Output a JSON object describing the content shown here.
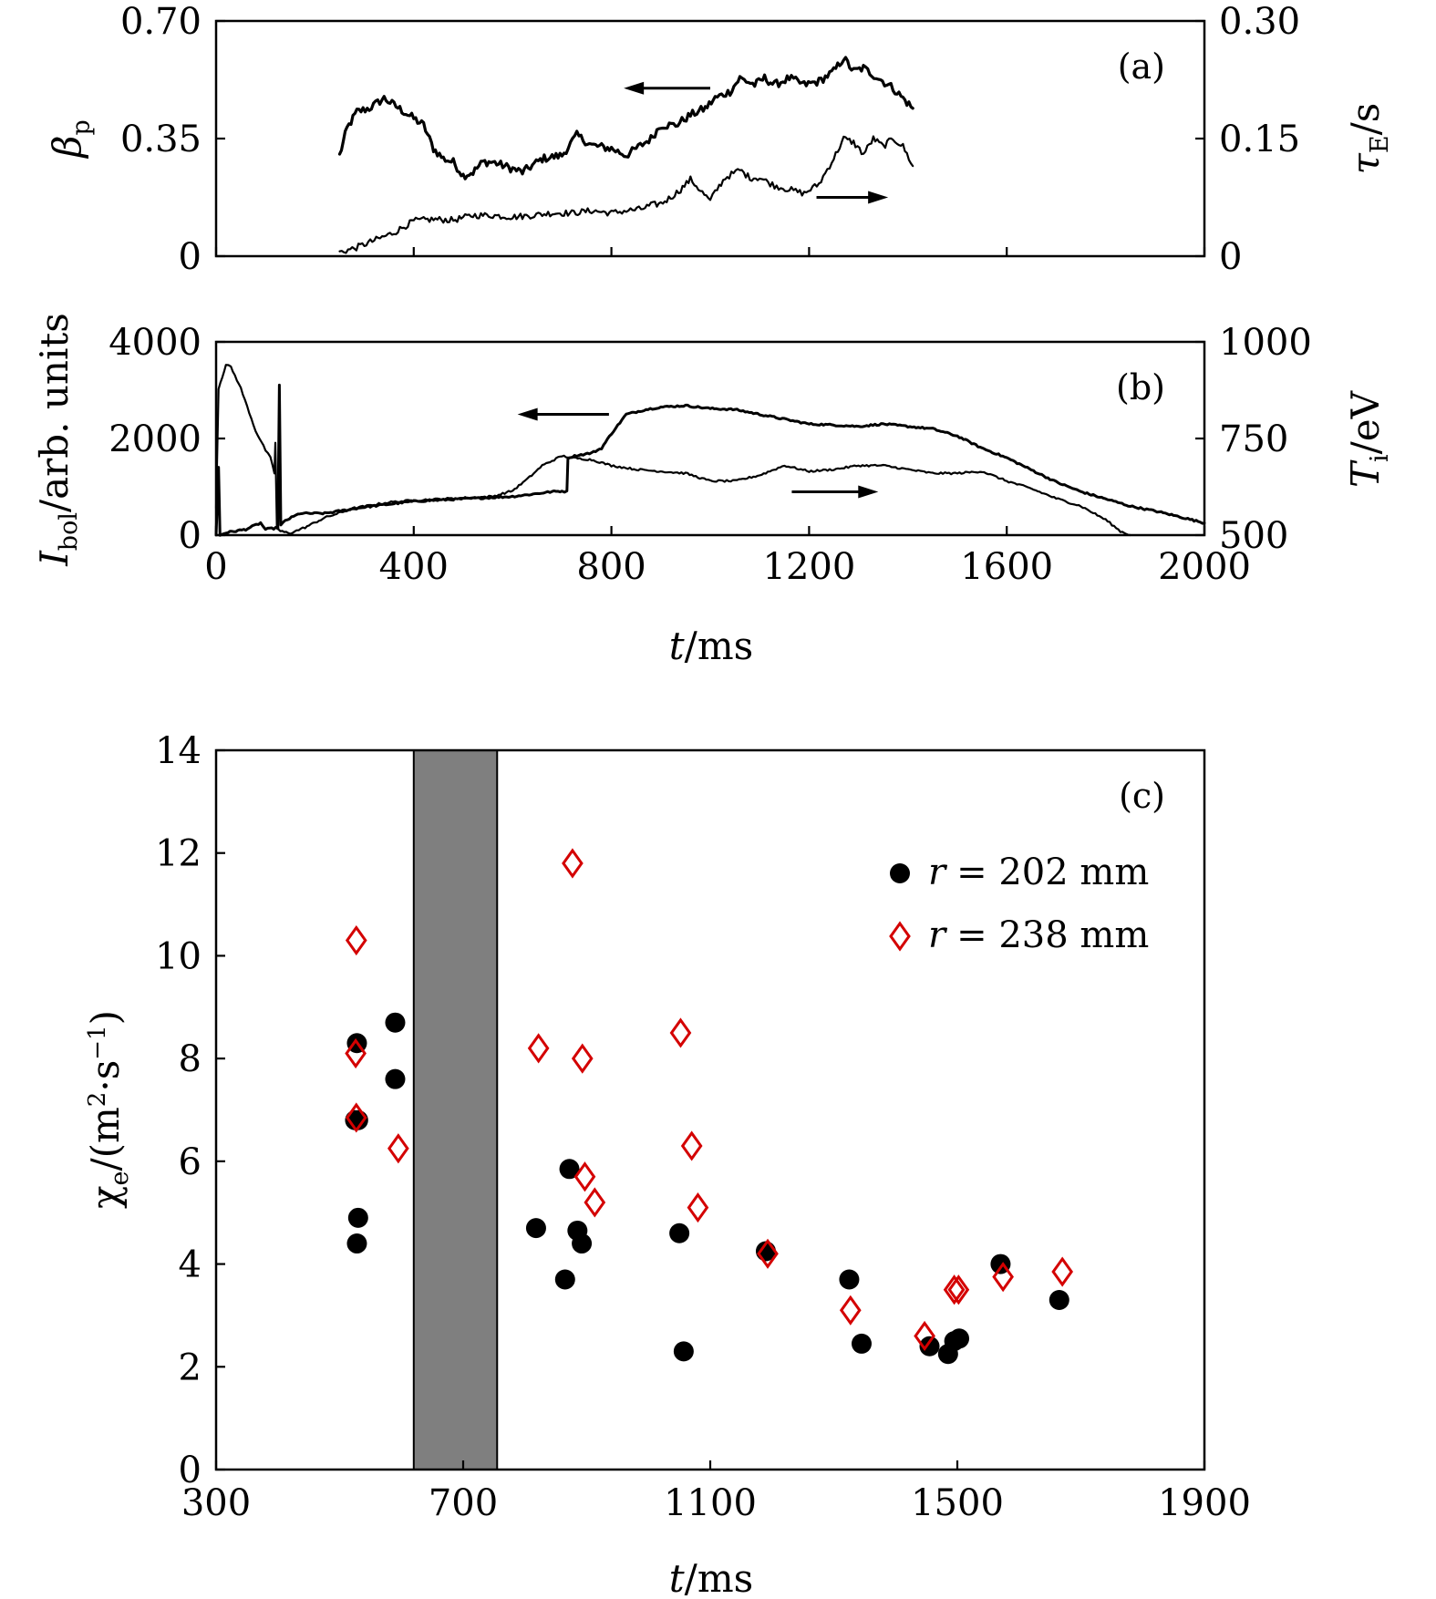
{
  "chart_data": [
    {
      "id": "a",
      "type": "line",
      "panel_label": "(a)",
      "xlim": [
        0,
        2000
      ],
      "xticks": [
        0,
        400,
        800,
        1200,
        1600,
        2000
      ],
      "ylabel_left": {
        "sym": "β",
        "sub": "p"
      },
      "ylabel_right": {
        "sym": "τ",
        "sub": "E",
        "unit": "/s"
      },
      "ylim_left": [
        0,
        0.7
      ],
      "ylim_right": [
        0,
        0.3
      ],
      "yticks_left": [
        {
          "v": 0,
          "label": "0"
        },
        {
          "v": 0.35,
          "label": "0.35"
        },
        {
          "v": 0.7,
          "label": "0.70"
        }
      ],
      "yticks_right": [
        {
          "v": 0,
          "label": "0"
        },
        {
          "v": 0.15,
          "label": "0.15"
        },
        {
          "v": 0.3,
          "label": "0.30"
        }
      ],
      "series": [
        {
          "name": "beta_p",
          "axis": "left",
          "noise": 0.012,
          "stroke": 3.2,
          "points": [
            [
              250,
              0.3
            ],
            [
              265,
              0.38
            ],
            [
              285,
              0.43
            ],
            [
              310,
              0.44
            ],
            [
              340,
              0.47
            ],
            [
              360,
              0.45
            ],
            [
              400,
              0.41
            ],
            [
              420,
              0.39
            ],
            [
              440,
              0.32
            ],
            [
              460,
              0.29
            ],
            [
              480,
              0.28
            ],
            [
              500,
              0.24
            ],
            [
              520,
              0.25
            ],
            [
              540,
              0.28
            ],
            [
              560,
              0.28
            ],
            [
              600,
              0.26
            ],
            [
              620,
              0.25
            ],
            [
              660,
              0.29
            ],
            [
              700,
              0.3
            ],
            [
              730,
              0.36
            ],
            [
              760,
              0.33
            ],
            [
              800,
              0.32
            ],
            [
              830,
              0.3
            ],
            [
              850,
              0.32
            ],
            [
              880,
              0.35
            ],
            [
              900,
              0.39
            ],
            [
              930,
              0.39
            ],
            [
              960,
              0.42
            ],
            [
              990,
              0.44
            ],
            [
              1010,
              0.47
            ],
            [
              1040,
              0.49
            ],
            [
              1060,
              0.53
            ],
            [
              1090,
              0.51
            ],
            [
              1110,
              0.53
            ],
            [
              1130,
              0.51
            ],
            [
              1160,
              0.53
            ],
            [
              1190,
              0.51
            ],
            [
              1220,
              0.52
            ],
            [
              1250,
              0.55
            ],
            [
              1270,
              0.59
            ],
            [
              1290,
              0.55
            ],
            [
              1310,
              0.56
            ],
            [
              1340,
              0.53
            ],
            [
              1370,
              0.5
            ],
            [
              1390,
              0.47
            ],
            [
              1410,
              0.44
            ]
          ]
        },
        {
          "name": "tau_E",
          "axis": "right",
          "noise": 0.004,
          "stroke": 2.2,
          "points": [
            [
              250,
              0.005
            ],
            [
              280,
              0.01
            ],
            [
              320,
              0.02
            ],
            [
              360,
              0.03
            ],
            [
              400,
              0.045
            ],
            [
              440,
              0.047
            ],
            [
              480,
              0.046
            ],
            [
              520,
              0.052
            ],
            [
              560,
              0.052
            ],
            [
              600,
              0.05
            ],
            [
              640,
              0.052
            ],
            [
              680,
              0.055
            ],
            [
              720,
              0.055
            ],
            [
              760,
              0.058
            ],
            [
              800,
              0.055
            ],
            [
              830,
              0.058
            ],
            [
              860,
              0.06
            ],
            [
              880,
              0.065
            ],
            [
              900,
              0.067
            ],
            [
              920,
              0.075
            ],
            [
              940,
              0.085
            ],
            [
              960,
              0.098
            ],
            [
              980,
              0.084
            ],
            [
              1000,
              0.07
            ],
            [
              1010,
              0.082
            ],
            [
              1030,
              0.1
            ],
            [
              1060,
              0.11
            ],
            [
              1080,
              0.1
            ],
            [
              1100,
              0.1
            ],
            [
              1130,
              0.09
            ],
            [
              1160,
              0.085
            ],
            [
              1190,
              0.08
            ],
            [
              1220,
              0.092
            ],
            [
              1250,
              0.125
            ],
            [
              1270,
              0.15
            ],
            [
              1290,
              0.145
            ],
            [
              1310,
              0.13
            ],
            [
              1330,
              0.15
            ],
            [
              1350,
              0.14
            ],
            [
              1370,
              0.15
            ],
            [
              1390,
              0.14
            ],
            [
              1410,
              0.115
            ]
          ]
        }
      ],
      "arrows": [
        {
          "direction": "left",
          "from": [
            1000,
            0.5
          ],
          "to": [
            825,
            0.5
          ],
          "axis": "left"
        },
        {
          "direction": "right",
          "from": [
            1215,
            0.075
          ],
          "to": [
            1360,
            0.075
          ],
          "axis": "right"
        }
      ]
    },
    {
      "id": "b",
      "type": "line",
      "panel_label": "(b)",
      "xlim": [
        0,
        2000
      ],
      "xticks": [
        0,
        400,
        800,
        1200,
        1600,
        2000
      ],
      "xtick_labels": [
        "0",
        "400",
        "800",
        "1200",
        "1600",
        "2000"
      ],
      "xlabel": {
        "sym": "t",
        "unit": "/ms"
      },
      "ylabel_left": {
        "sym": "I",
        "sub": "bol",
        "unit": "/arb. units"
      },
      "ylabel_right": {
        "sym": "T",
        "sub": "i",
        "unit": "/eV"
      },
      "ylim_left": [
        0,
        4000
      ],
      "ylim_right": [
        500,
        1000
      ],
      "yticks_left": [
        {
          "v": 0,
          "label": "0"
        },
        {
          "v": 2000,
          "label": "2000"
        },
        {
          "v": 4000,
          "label": "4000"
        }
      ],
      "yticks_right": [
        {
          "v": 500,
          "label": "500"
        },
        {
          "v": 750,
          "label": "750"
        },
        {
          "v": 1000,
          "label": "1000"
        }
      ],
      "series": [
        {
          "name": "I_bol",
          "axis": "left",
          "noise": 18,
          "stroke": 3.0,
          "points": [
            [
              0,
              0
            ],
            [
              5,
              1400
            ],
            [
              8,
              0
            ],
            [
              20,
              50
            ],
            [
              60,
              120
            ],
            [
              90,
              250
            ],
            [
              100,
              120
            ],
            [
              125,
              150
            ],
            [
              128,
              3100
            ],
            [
              131,
              200
            ],
            [
              140,
              300
            ],
            [
              170,
              450
            ],
            [
              220,
              450
            ],
            [
              300,
              580
            ],
            [
              400,
              700
            ],
            [
              500,
              750
            ],
            [
              600,
              800
            ],
            [
              650,
              860
            ],
            [
              680,
              900
            ],
            [
              700,
              910
            ],
            [
              710,
              900
            ],
            [
              712,
              1600
            ],
            [
              730,
              1650
            ],
            [
              760,
              1700
            ],
            [
              780,
              1800
            ],
            [
              800,
              2100
            ],
            [
              830,
              2500
            ],
            [
              870,
              2600
            ],
            [
              900,
              2650
            ],
            [
              950,
              2680
            ],
            [
              1000,
              2620
            ],
            [
              1050,
              2600
            ],
            [
              1100,
              2500
            ],
            [
              1150,
              2400
            ],
            [
              1200,
              2300
            ],
            [
              1250,
              2280
            ],
            [
              1300,
              2250
            ],
            [
              1350,
              2300
            ],
            [
              1400,
              2250
            ],
            [
              1450,
              2200
            ],
            [
              1500,
              2050
            ],
            [
              1550,
              1800
            ],
            [
              1600,
              1600
            ],
            [
              1650,
              1350
            ],
            [
              1700,
              1100
            ],
            [
              1750,
              900
            ],
            [
              1800,
              750
            ],
            [
              1850,
              600
            ],
            [
              1900,
              500
            ],
            [
              1950,
              380
            ],
            [
              2000,
              250
            ]
          ]
        },
        {
          "name": "T_i",
          "axis": "right",
          "noise": 2.5,
          "stroke": 2.2,
          "points": [
            [
              0,
              570
            ],
            [
              5,
              880
            ],
            [
              20,
              940
            ],
            [
              30,
              935
            ],
            [
              50,
              880
            ],
            [
              80,
              770
            ],
            [
              100,
              720
            ],
            [
              110,
              700
            ],
            [
              118,
              660
            ],
            [
              120,
              740
            ],
            [
              123,
              520
            ],
            [
              130,
              510
            ],
            [
              150,
              505
            ],
            [
              180,
              520
            ],
            [
              220,
              545
            ],
            [
              280,
              570
            ],
            [
              350,
              585
            ],
            [
              400,
              590
            ],
            [
              480,
              595
            ],
            [
              560,
              600
            ],
            [
              600,
              615
            ],
            [
              630,
              645
            ],
            [
              660,
              680
            ],
            [
              700,
              705
            ],
            [
              720,
              700
            ],
            [
              760,
              695
            ],
            [
              800,
              680
            ],
            [
              850,
              670
            ],
            [
              900,
              665
            ],
            [
              950,
              660
            ],
            [
              1000,
              640
            ],
            [
              1050,
              640
            ],
            [
              1100,
              655
            ],
            [
              1150,
              680
            ],
            [
              1200,
              665
            ],
            [
              1250,
              670
            ],
            [
              1300,
              680
            ],
            [
              1350,
              680
            ],
            [
              1400,
              670
            ],
            [
              1450,
              660
            ],
            [
              1500,
              660
            ],
            [
              1550,
              665
            ],
            [
              1600,
              640
            ],
            [
              1650,
              620
            ],
            [
              1700,
              595
            ],
            [
              1750,
              575
            ],
            [
              1800,
              540
            ],
            [
              1830,
              510
            ],
            [
              1850,
              500
            ]
          ]
        }
      ],
      "arrows": [
        {
          "direction": "left",
          "from": [
            795,
            2500
          ],
          "to": [
            610,
            2500
          ],
          "axis": "left"
        },
        {
          "direction": "right",
          "from": [
            1165,
            612
          ],
          "to": [
            1340,
            612
          ],
          "axis": "right"
        }
      ]
    },
    {
      "id": "c",
      "type": "scatter",
      "panel_label": "(c)",
      "xlim": [
        300,
        1900
      ],
      "ylim": [
        0,
        14
      ],
      "xticks": [
        300,
        700,
        1100,
        1500,
        1900
      ],
      "xtick_labels": [
        "300",
        "700",
        "1100",
        "1500",
        "1900"
      ],
      "yticks": [
        0,
        2,
        4,
        6,
        8,
        10,
        12,
        14
      ],
      "ytick_labels": [
        "0",
        "2",
        "4",
        "6",
        "8",
        "10",
        "12",
        "14"
      ],
      "xlabel": {
        "sym": "t",
        "unit": "/ms"
      },
      "ylabel": {
        "sym": "χ",
        "sub": "e",
        "pre": "/(m",
        "sup": "2",
        "mid": "·s",
        "sup2": "−1",
        "post": ")"
      },
      "shaded_region": {
        "x_start": 620,
        "x_end": 755,
        "color": "#7f7f7f"
      },
      "series": [
        {
          "name": "r = 202 mm",
          "legend_lhs": "r",
          "legend_rhs": "= 202 mm",
          "marker": "circle",
          "color": "#000000",
          "x": [
            525,
            528,
            530,
            528,
            530,
            590,
            590,
            818,
            865,
            872,
            885,
            892,
            1050,
            1057,
            1190,
            1325,
            1345,
            1455,
            1485,
            1495,
            1503,
            1570,
            1665
          ],
          "y": [
            6.8,
            8.3,
            4.9,
            4.4,
            6.8,
            8.7,
            7.6,
            4.7,
            3.7,
            5.85,
            4.65,
            4.4,
            4.6,
            2.3,
            4.25,
            3.7,
            2.45,
            2.4,
            2.25,
            2.5,
            2.55,
            4.0,
            3.3
          ]
        },
        {
          "name": "r = 238 mm",
          "legend_lhs": "r",
          "legend_rhs": "= 238 mm",
          "marker": "diamond",
          "color": "#d40000",
          "x": [
            527,
            526,
            527,
            595,
            822,
            877,
            893,
            897,
            913,
            1052,
            1070,
            1080,
            1193,
            1327,
            1447,
            1495,
            1502,
            1574,
            1670
          ],
          "y": [
            10.3,
            8.1,
            6.85,
            6.25,
            8.2,
            11.8,
            8.0,
            5.7,
            5.2,
            8.5,
            6.3,
            5.1,
            4.2,
            3.1,
            2.6,
            3.5,
            3.5,
            3.75,
            3.85
          ]
        }
      ]
    }
  ]
}
